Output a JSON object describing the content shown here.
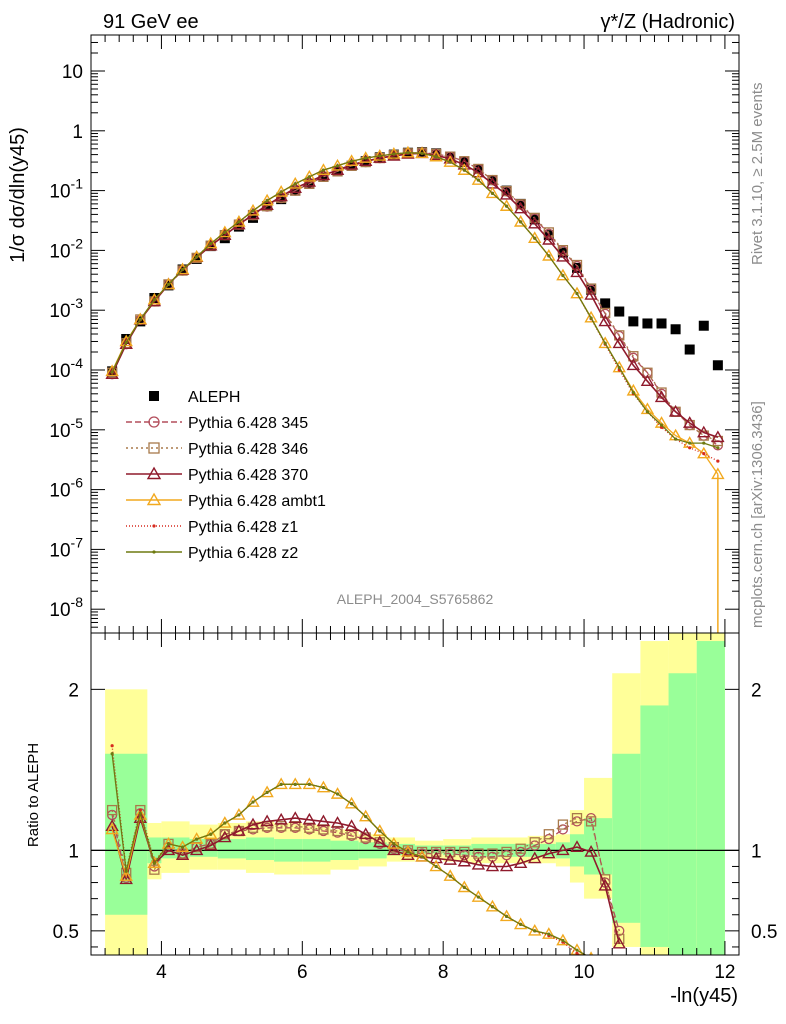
{
  "header": {
    "left": "91 GeV ee",
    "right": "γ*/Z (Hadronic)"
  },
  "side_labels": {
    "rivet": "Rivet 3.1.10, ≥ 2.5M events",
    "mcplots": "mcplots.cern.ch [arXiv:1306.3436]"
  },
  "watermark": "ALEPH_2004_S5765862",
  "colors": {
    "ALEPH": "#000000",
    "p345": "#b34e5c",
    "p346": "#a8794a",
    "p370": "#8f1a2c",
    "ambt1": "#f2a91f",
    "z1": "#d62a1e",
    "z2": "#6e7a10",
    "band_inner": "#99ff99",
    "band_outer": "#ffff99"
  },
  "chart_data": [
    {
      "type": "scatter",
      "panel": "main",
      "ylabel": "1/σ  dσ/dln(y45)",
      "yscale": "log",
      "ylim": [
        4e-09,
        40
      ],
      "xlim": [
        3.0,
        12.2
      ],
      "yticks": [
        "10^-8",
        "10^-7",
        "10^-6",
        "10^-5",
        "10^-4",
        "10^-3",
        "10^-2",
        "10^-1",
        "1",
        "10"
      ],
      "legend_position": "lower-left",
      "x": [
        3.3,
        3.5,
        3.7,
        3.9,
        4.1,
        4.3,
        4.5,
        4.7,
        4.9,
        5.1,
        5.3,
        5.5,
        5.7,
        5.9,
        6.1,
        6.3,
        6.5,
        6.7,
        6.9,
        7.1,
        7.3,
        7.5,
        7.7,
        7.9,
        8.1,
        8.3,
        8.5,
        8.7,
        8.9,
        9.1,
        9.3,
        9.5,
        9.7,
        9.9,
        10.1,
        10.3,
        10.5,
        10.7,
        10.9,
        11.1,
        11.3,
        11.5,
        11.7,
        11.9
      ],
      "series": [
        {
          "name": "ALEPH",
          "key": "ALEPH",
          "values": [
            9.5e-05,
            0.00033,
            0.00065,
            0.0016,
            0.0026,
            0.0048,
            0.0072,
            0.0118,
            0.016,
            0.025,
            0.035,
            0.055,
            0.072,
            0.1,
            0.13,
            0.17,
            0.21,
            0.26,
            0.31,
            0.36,
            0.4,
            0.43,
            0.44,
            0.42,
            0.37,
            0.3,
            0.23,
            0.15,
            0.1,
            0.06,
            0.033,
            0.018,
            0.0092,
            0.0051,
            0.0022,
            0.0013,
            0.00095,
            0.00065,
            0.0006,
            0.0006,
            0.00048,
            0.00022,
            0.00055,
            0.00012
          ]
        },
        {
          "name": "Pythia 6.428 345",
          "key": "p345",
          "values": [
            8.5e-05,
            0.00027,
            0.00069,
            0.0014,
            0.0027,
            0.0046,
            0.0075,
            0.012,
            0.018,
            0.027,
            0.039,
            0.054,
            0.075,
            0.1,
            0.13,
            0.17,
            0.21,
            0.26,
            0.3,
            0.35,
            0.39,
            0.42,
            0.43,
            0.41,
            0.37,
            0.31,
            0.23,
            0.15,
            0.097,
            0.058,
            0.034,
            0.019,
            0.0098,
            0.0055,
            0.0022,
            0.00087,
            0.00037,
            0.00016,
            9e-05,
            4e-05,
            2e-05,
            1.2e-05,
            8e-06,
            5.5e-06
          ]
        },
        {
          "name": "Pythia 6.428 346",
          "key": "p346",
          "values": [
            9e-05,
            0.00028,
            0.0007,
            0.0014,
            0.0027,
            0.0046,
            0.0075,
            0.012,
            0.018,
            0.027,
            0.039,
            0.055,
            0.076,
            0.1,
            0.13,
            0.17,
            0.21,
            0.26,
            0.3,
            0.35,
            0.39,
            0.42,
            0.43,
            0.41,
            0.37,
            0.31,
            0.23,
            0.15,
            0.098,
            0.059,
            0.035,
            0.02,
            0.0101,
            0.0057,
            0.0023,
            0.0009,
            0.00038,
            0.00017,
            9e-05,
            4.2e-05,
            2e-05,
            1.2e-05,
            8e-06,
            6.5e-06
          ]
        },
        {
          "name": "Pythia 6.428 370",
          "key": "p370",
          "values": [
            8.5e-05,
            0.00027,
            0.00069,
            0.0014,
            0.0027,
            0.0047,
            0.0077,
            0.012,
            0.018,
            0.027,
            0.04,
            0.057,
            0.08,
            0.11,
            0.14,
            0.18,
            0.22,
            0.27,
            0.31,
            0.35,
            0.38,
            0.41,
            0.42,
            0.39,
            0.34,
            0.27,
            0.2,
            0.13,
            0.085,
            0.05,
            0.028,
            0.015,
            0.0078,
            0.0043,
            0.0018,
            0.00065,
            0.00028,
            0.00012,
            6.5e-05,
            3.5e-05,
            2e-05,
            1.3e-05,
            9e-06,
            7.5e-06
          ]
        },
        {
          "name": "Pythia 6.428 ambt1",
          "key": "ambt1",
          "values": [
            9.5e-05,
            0.0003,
            0.0007,
            0.0015,
            0.0027,
            0.0048,
            0.0078,
            0.013,
            0.02,
            0.03,
            0.046,
            0.068,
            0.095,
            0.13,
            0.17,
            0.22,
            0.26,
            0.31,
            0.35,
            0.38,
            0.41,
            0.43,
            0.42,
            0.37,
            0.3,
            0.22,
            0.15,
            0.09,
            0.055,
            0.03,
            0.016,
            0.0081,
            0.0038,
            0.0019,
            0.00075,
            0.00028,
            0.00011,
            4.5e-05,
            2.2e-05,
            1.3e-05,
            8e-06,
            6e-06,
            4e-06,
            1.8e-06
          ]
        },
        {
          "name": "Pythia 6.428 z1",
          "key": "z1",
          "values": [
            9e-05,
            0.00029,
            0.00069,
            0.0015,
            0.0027,
            0.0048,
            0.0078,
            0.013,
            0.02,
            0.03,
            0.046,
            0.068,
            0.095,
            0.13,
            0.17,
            0.22,
            0.26,
            0.31,
            0.35,
            0.38,
            0.41,
            0.43,
            0.42,
            0.37,
            0.3,
            0.22,
            0.15,
            0.09,
            0.055,
            0.03,
            0.016,
            0.0081,
            0.0038,
            0.0019,
            0.00072,
            0.00027,
            0.0001,
            4e-05,
            2e-05,
            1.1e-05,
            7e-06,
            5e-06,
            4e-06,
            3e-06
          ]
        },
        {
          "name": "Pythia 6.428 z2",
          "key": "z2",
          "values": [
            9.2e-05,
            0.00029,
            0.0007,
            0.0015,
            0.0027,
            0.0048,
            0.0078,
            0.013,
            0.02,
            0.03,
            0.046,
            0.068,
            0.095,
            0.13,
            0.17,
            0.22,
            0.26,
            0.31,
            0.35,
            0.38,
            0.41,
            0.43,
            0.42,
            0.37,
            0.3,
            0.22,
            0.15,
            0.09,
            0.055,
            0.03,
            0.016,
            0.0081,
            0.0038,
            0.0019,
            0.00074,
            0.00028,
            0.00011,
            4.2e-05,
            2e-05,
            1.2e-05,
            7e-06,
            6e-06,
            6e-06,
            5e-06
          ]
        }
      ]
    },
    {
      "type": "line",
      "panel": "ratio",
      "ylabel": "Ratio to ALEPH",
      "xlabel": "-ln(y45)",
      "ylim": [
        0.35,
        2.35
      ],
      "xlim": [
        3.0,
        12.2
      ],
      "xticks": [
        "4",
        "6",
        "8",
        "10",
        "12"
      ],
      "yticks": [
        "0.5",
        "1",
        "2"
      ],
      "reference_line": 1,
      "band_edges": [
        3.2,
        3.8,
        4.0,
        4.4,
        4.8,
        5.2,
        5.6,
        6.0,
        6.4,
        6.8,
        7.2,
        7.6,
        8.0,
        8.4,
        8.8,
        9.2,
        9.6,
        9.8,
        10.0,
        10.4,
        10.8,
        11.2,
        11.6,
        12.0
      ],
      "band_inner": [
        0.6,
        0.92,
        0.95,
        0.96,
        0.95,
        0.94,
        0.93,
        0.93,
        0.94,
        0.95,
        0.97,
        0.98,
        0.97,
        0.96,
        0.96,
        0.96,
        0.95,
        0.9,
        0.85,
        0.55,
        0.4,
        0.35,
        0.35
      ],
      "band_inner_hi": [
        1.6,
        1.08,
        1.08,
        1.07,
        1.07,
        1.08,
        1.07,
        1.07,
        1.06,
        1.05,
        1.04,
        1.03,
        1.03,
        1.04,
        1.04,
        1.04,
        1.05,
        1.1,
        1.2,
        1.6,
        1.9,
        2.1,
        2.3
      ],
      "band_outer_lo": [
        0.3,
        0.82,
        0.86,
        0.88,
        0.88,
        0.86,
        0.85,
        0.85,
        0.88,
        0.9,
        0.93,
        0.95,
        0.93,
        0.92,
        0.92,
        0.92,
        0.9,
        0.8,
        0.7,
        0.4,
        0.35,
        0.35,
        0.35
      ],
      "band_outer_hi": [
        2.0,
        1.17,
        1.18,
        1.16,
        1.17,
        1.18,
        1.17,
        1.16,
        1.13,
        1.1,
        1.08,
        1.06,
        1.07,
        1.08,
        1.08,
        1.09,
        1.1,
        1.25,
        1.45,
        2.1,
        2.3,
        2.35,
        2.35
      ],
      "x": [
        3.3,
        3.5,
        3.7,
        3.9,
        4.1,
        4.3,
        4.5,
        4.7,
        4.9,
        5.1,
        5.3,
        5.5,
        5.7,
        5.9,
        6.1,
        6.3,
        6.5,
        6.7,
        6.9,
        7.1,
        7.3,
        7.5,
        7.7,
        7.9,
        8.1,
        8.3,
        8.5,
        8.7,
        8.9,
        9.1,
        9.3,
        9.5,
        9.7,
        9.9,
        10.1,
        10.3,
        10.5
      ],
      "series": [
        {
          "name": "Pythia 6.428 345",
          "key": "p345",
          "values": [
            1.22,
            0.83,
            1.23,
            0.9,
            1.02,
            0.98,
            1.02,
            1.04,
            1.1,
            1.12,
            1.13,
            1.14,
            1.14,
            1.14,
            1.13,
            1.12,
            1.11,
            1.09,
            1.07,
            1.04,
            1.01,
            0.99,
            0.98,
            0.98,
            0.98,
            0.97,
            0.96,
            0.96,
            0.97,
            0.99,
            1.03,
            1.07,
            1.13,
            1.18,
            1.2,
            0.8,
            0.5
          ]
        },
        {
          "name": "Pythia 6.428 346",
          "key": "p346",
          "values": [
            1.25,
            0.86,
            1.25,
            0.88,
            1.04,
            0.98,
            1.02,
            1.04,
            1.1,
            1.12,
            1.14,
            1.15,
            1.15,
            1.15,
            1.14,
            1.13,
            1.12,
            1.1,
            1.08,
            1.05,
            1.02,
            1.0,
            0.99,
            0.99,
            0.99,
            0.99,
            0.98,
            0.98,
            0.99,
            1.01,
            1.05,
            1.1,
            1.16,
            1.2,
            1.18,
            0.82,
            0.45
          ]
        },
        {
          "name": "Pythia 6.428 370",
          "key": "p370",
          "values": [
            1.15,
            0.82,
            1.2,
            0.92,
            1.0,
            0.97,
            1.0,
            1.03,
            1.08,
            1.12,
            1.16,
            1.18,
            1.19,
            1.2,
            1.19,
            1.18,
            1.17,
            1.15,
            1.1,
            1.05,
            1.0,
            0.97,
            0.96,
            0.95,
            0.94,
            0.93,
            0.91,
            0.9,
            0.9,
            0.92,
            0.95,
            0.98,
            1.0,
            1.02,
            0.99,
            0.78,
            0.42
          ]
        },
        {
          "name": "Pythia 6.428 ambt1",
          "key": "ambt1",
          "values": [
            1.13,
            0.84,
            1.22,
            0.92,
            1.04,
            1.02,
            1.07,
            1.1,
            1.17,
            1.22,
            1.3,
            1.36,
            1.41,
            1.41,
            1.41,
            1.39,
            1.35,
            1.29,
            1.21,
            1.12,
            1.04,
            0.99,
            0.96,
            0.9,
            0.84,
            0.77,
            0.71,
            0.65,
            0.59,
            0.54,
            0.5,
            0.48,
            0.44,
            0.38,
            0.33,
            0.3,
            0.28
          ]
        },
        {
          "name": "Pythia 6.428 z1",
          "key": "z1",
          "values": [
            1.65,
            0.88,
            1.25,
            0.93,
            1.04,
            1.02,
            1.07,
            1.1,
            1.17,
            1.22,
            1.3,
            1.36,
            1.41,
            1.41,
            1.41,
            1.39,
            1.35,
            1.29,
            1.21,
            1.12,
            1.04,
            0.99,
            0.96,
            0.9,
            0.84,
            0.77,
            0.71,
            0.65,
            0.59,
            0.54,
            0.5,
            0.47,
            0.43,
            0.36,
            0.3,
            0.28,
            0.27
          ]
        },
        {
          "name": "Pythia 6.428 z2",
          "key": "z2",
          "values": [
            1.6,
            0.87,
            1.23,
            0.92,
            1.04,
            1.02,
            1.07,
            1.1,
            1.17,
            1.22,
            1.3,
            1.36,
            1.41,
            1.41,
            1.41,
            1.39,
            1.35,
            1.29,
            1.21,
            1.12,
            1.04,
            0.99,
            0.96,
            0.9,
            0.84,
            0.77,
            0.71,
            0.65,
            0.59,
            0.54,
            0.5,
            0.48,
            0.44,
            0.38,
            0.33,
            0.3,
            0.28
          ]
        }
      ]
    }
  ]
}
